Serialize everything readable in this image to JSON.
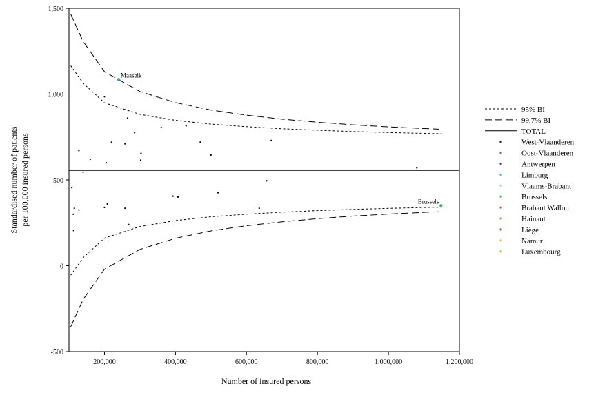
{
  "chart_data": {
    "type": "scatter",
    "subtype": "funnel plot",
    "xlabel": "Number of insured persons",
    "ylabel": [
      "Standardised number of patients",
      "per 100,000 insured persons"
    ],
    "xlim": [
      100000,
      1200000
    ],
    "ylim": [
      -500,
      1500
    ],
    "xticks": [
      200000,
      400000,
      600000,
      800000,
      1000000,
      1200000
    ],
    "xtick_labels": [
      "200,000",
      "400,000",
      "600,000",
      "800,000",
      "1,000,000",
      "1,200,000"
    ],
    "yticks": [
      -500,
      0,
      500,
      1000,
      1500
    ],
    "ytick_labels": [
      "-500",
      "0",
      "500",
      "1,000",
      "1,500"
    ],
    "total_line": 555,
    "limits": {
      "x": [
        105000,
        140000,
        200000,
        300000,
        400000,
        500000,
        600000,
        700000,
        800000,
        900000,
        1000000,
        1100000,
        1150000
      ],
      "ci95_upper": [
        1165,
        1063,
        949,
        882,
        847,
        825,
        810,
        798,
        789,
        782,
        776,
        771,
        769
      ],
      "ci95_lower": [
        -55,
        47,
        161,
        228,
        263,
        285,
        300,
        312,
        321,
        328,
        334,
        339,
        341
      ],
      "ci997_upper": [
        1465,
        1306,
        1130,
        1015,
        950,
        907,
        877,
        854,
        836,
        821,
        809,
        799,
        795
      ],
      "ci997_lower": [
        -355,
        -196,
        -20,
        95,
        160,
        203,
        233,
        256,
        274,
        289,
        301,
        311,
        315
      ]
    },
    "points": [
      {
        "x": 128000,
        "y": 670
      },
      {
        "x": 160000,
        "y": 620
      },
      {
        "x": 200000,
        "y": 985
      },
      {
        "x": 205000,
        "y": 600
      },
      {
        "x": 220000,
        "y": 720
      },
      {
        "x": 258000,
        "y": 710
      },
      {
        "x": 265000,
        "y": 860
      },
      {
        "x": 285000,
        "y": 775
      },
      {
        "x": 303000,
        "y": 655
      },
      {
        "x": 302000,
        "y": 615
      },
      {
        "x": 360000,
        "y": 805
      },
      {
        "x": 430000,
        "y": 815
      },
      {
        "x": 470000,
        "y": 720
      },
      {
        "x": 500000,
        "y": 645
      },
      {
        "x": 670000,
        "y": 730
      },
      {
        "x": 1080000,
        "y": 570
      },
      {
        "x": 140000,
        "y": 545
      },
      {
        "x": 108000,
        "y": 455
      },
      {
        "x": 115000,
        "y": 335
      },
      {
        "x": 112000,
        "y": 300
      },
      {
        "x": 128000,
        "y": 325
      },
      {
        "x": 113000,
        "y": 205
      },
      {
        "x": 200000,
        "y": 340
      },
      {
        "x": 208000,
        "y": 360
      },
      {
        "x": 258000,
        "y": 335
      },
      {
        "x": 268000,
        "y": 240
      },
      {
        "x": 393000,
        "y": 405
      },
      {
        "x": 407000,
        "y": 400
      },
      {
        "x": 520000,
        "y": 425
      },
      {
        "x": 636000,
        "y": 335
      },
      {
        "x": 657000,
        "y": 495
      }
    ],
    "highlighted": [
      {
        "label": "Maaseik",
        "x": 240000,
        "y": 1085,
        "region": "Limburg"
      },
      {
        "label": "Brussels",
        "x": 1148000,
        "y": 350,
        "region": "Brussels"
      }
    ],
    "legend": [
      {
        "label": "95% BI",
        "kind": "line",
        "dash": "short"
      },
      {
        "label": "99,7% BI",
        "kind": "line",
        "dash": "long"
      },
      {
        "label": "TOTAL",
        "kind": "line",
        "dash": "solid"
      },
      {
        "label": "West-Vlaanderen",
        "kind": "dot",
        "color": "#0b1a7a"
      },
      {
        "label": "Oost-Vlaanderen",
        "kind": "dot",
        "color": "#3a6fd8"
      },
      {
        "label": "Antwerpen",
        "kind": "dot",
        "color": "#1f3fd6"
      },
      {
        "label": "Limburg",
        "kind": "dot",
        "color": "#2f9fe6"
      },
      {
        "label": "Vlaams-Brabant",
        "kind": "dot",
        "color": "#8fd0f5"
      },
      {
        "label": "Brussels",
        "kind": "dot",
        "color": "#3cb84a"
      },
      {
        "label": "Brabant Wallon",
        "kind": "dot",
        "color": "#d9572b"
      },
      {
        "label": "Hainaut",
        "kind": "dot",
        "color": "#f07d2a"
      },
      {
        "label": "Liège",
        "kind": "dot",
        "color": "#b5523b"
      },
      {
        "label": "Namur",
        "kind": "dot",
        "color": "#f2c21b"
      },
      {
        "label": "Luxembourg",
        "kind": "dot",
        "color": "#f0a21e"
      }
    ],
    "legend_position": "right",
    "grid": false
  }
}
